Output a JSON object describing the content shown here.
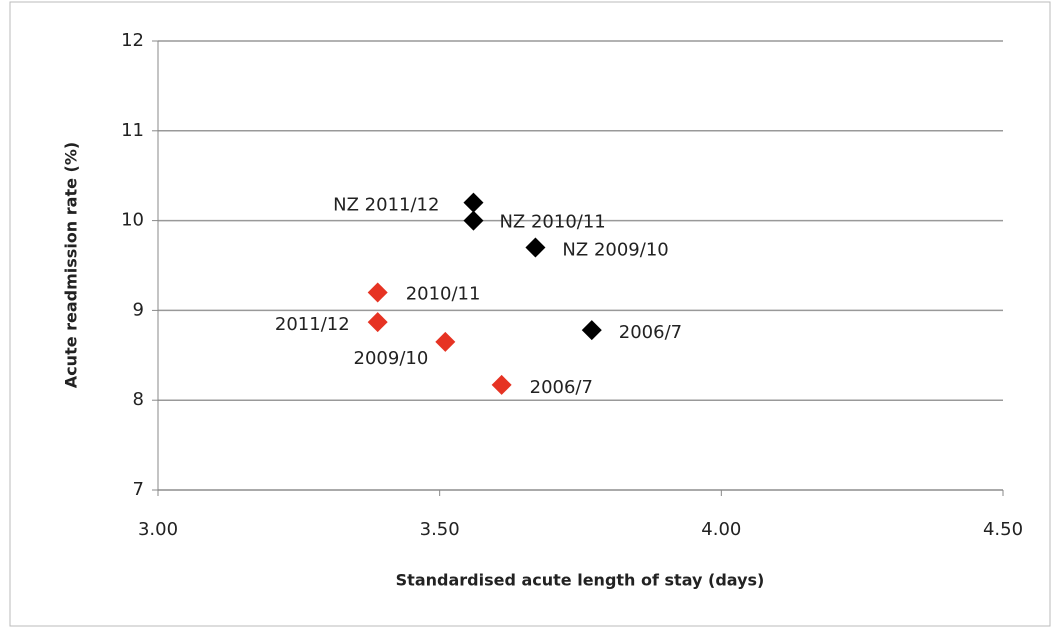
{
  "chart_data": {
    "type": "scatter",
    "xlabel": "Standardised  acute length of stay (days)",
    "ylabel": "Acute readmission rate (%)",
    "xlim": [
      3.0,
      4.5
    ],
    "xticks": [
      {
        "value": 3.0,
        "label": "3.00"
      },
      {
        "value": 3.5,
        "label": "3.50"
      },
      {
        "value": 4.0,
        "label": "4.00"
      },
      {
        "value": 4.5,
        "label": "4.50"
      }
    ],
    "ylim": [
      7,
      12
    ],
    "yticks": [
      7,
      8,
      9,
      10,
      11,
      12
    ],
    "grid": true,
    "series": [
      {
        "color": "#000000",
        "x": [
          3.56,
          3.56,
          3.67,
          3.77
        ],
        "values": [
          10.2,
          10.0,
          9.7,
          8.78
        ],
        "point_labels": [
          "NZ 2011/12",
          "NZ 2010/11",
          "NZ 2009/10",
          "2006/7"
        ]
      },
      {
        "color": "#e63323",
        "x": [
          3.39,
          3.39,
          3.51,
          3.61
        ],
        "values": [
          9.2,
          8.87,
          8.65,
          8.17
        ],
        "point_labels": [
          "2010/11",
          "2011/12",
          "2009/10",
          "2006/7"
        ]
      }
    ]
  }
}
